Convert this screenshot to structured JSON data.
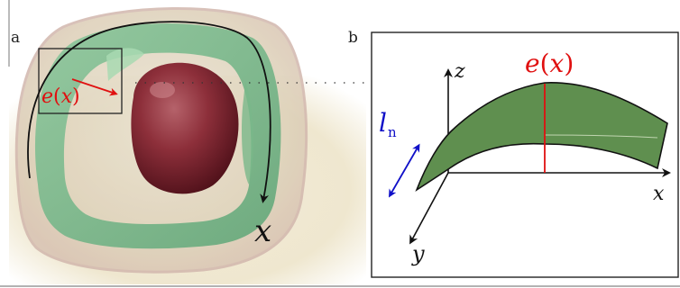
{
  "panel_a": {
    "letter": "a",
    "inset_label": {
      "e": "e",
      "open": "(",
      "var": "x",
      "close": ")"
    },
    "arc_label": "x"
  },
  "panel_b": {
    "letter": "b",
    "axes": {
      "x": "x",
      "y": "y",
      "z": "z"
    },
    "thickness_label": {
      "e": "e",
      "open": "(",
      "var": "x",
      "close": ")"
    },
    "length_label": {
      "l": "l",
      "sub": "n"
    }
  },
  "colors": {
    "membrane_green": "#5f8f4f",
    "red_label": "#e01010",
    "blue_label": "#1010c8",
    "frame": "#222222"
  }
}
